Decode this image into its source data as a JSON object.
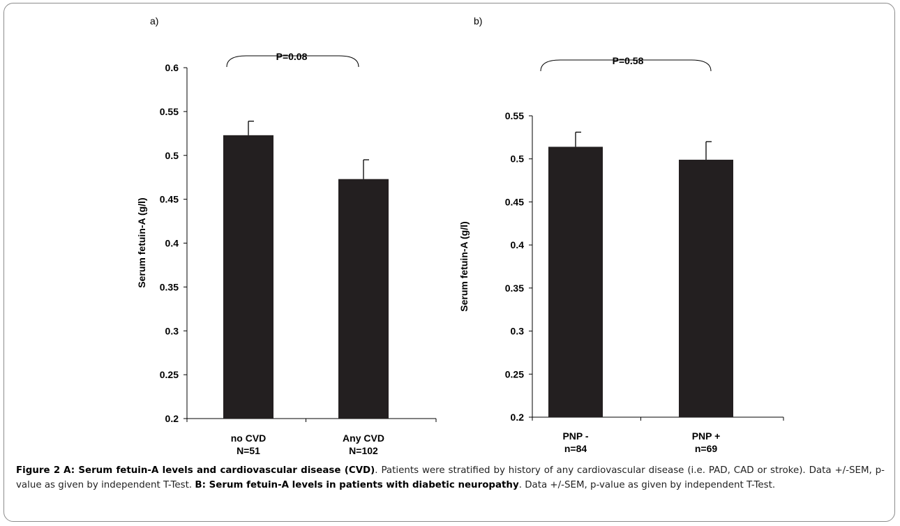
{
  "chart_data": [
    {
      "type": "bar",
      "panel_label": "a)",
      "ylabel": "Serum fetuin-A (g/l)",
      "ylim": [
        0.2,
        0.6
      ],
      "yticks": [
        "0.2",
        "0.25",
        "0.3",
        "0.35",
        "0.4",
        "0.45",
        "0.5",
        "0.55",
        "0.6"
      ],
      "categories": [
        [
          "no CVD",
          "N=51"
        ],
        [
          "Any CVD",
          "N=102"
        ]
      ],
      "values": [
        0.523,
        0.473
      ],
      "error_upper": [
        0.016,
        0.022
      ],
      "annotation": "P=0.08",
      "bar_color": "#231f20"
    },
    {
      "type": "bar",
      "panel_label": "b)",
      "ylabel": "Serum fetuin-A (g/l)",
      "ylim": [
        0.2,
        0.55
      ],
      "yticks": [
        "0.2",
        "0.25",
        "0.3",
        "0.35",
        "0.4",
        "0.45",
        "0.5",
        "0.55"
      ],
      "categories": [
        [
          "PNP -",
          "n=84"
        ],
        [
          "PNP +",
          "n=69"
        ]
      ],
      "values": [
        0.514,
        0.499
      ],
      "error_upper": [
        0.017,
        0.021
      ],
      "annotation": "P=0.58",
      "bar_color": "#231f20"
    }
  ],
  "caption": {
    "figure_label": "Figure 2",
    "title_a": "A: Serum fetuin-A levels and cardiovascular disease (CVD)",
    "text_a": ". Patients were stratified by history of any cardiovascular disease (i.e. PAD, CAD or stroke). Data +/-SEM, p-value as given by independent T-Test. ",
    "title_b": "B: Serum fetuin-A levels in patients with diabetic neuropathy",
    "text_b": ". Data +/-SEM, p-value as given by independent T-Test."
  }
}
